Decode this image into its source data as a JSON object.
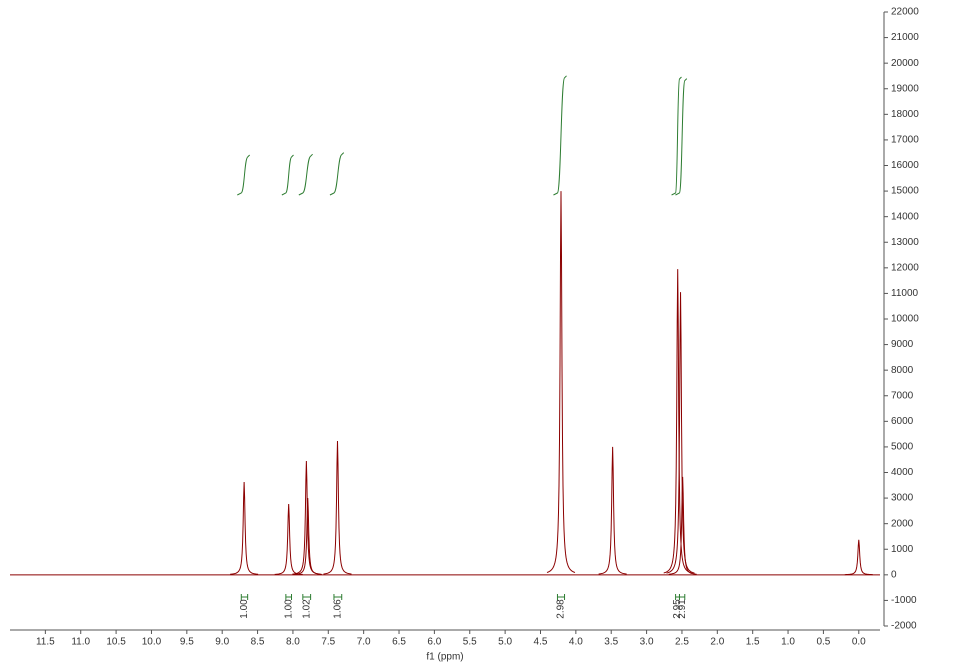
{
  "chart_data": {
    "type": "nmr",
    "x_label": "f1 (ppm)",
    "color": "#8b0000",
    "integral_color": "#2e7d32",
    "label_color": "#1a237e",
    "xlim": [
      12.0,
      -0.3
    ],
    "xticks": [
      11.5,
      {
        "value": 11,
        "label": "11.0"
      },
      10.5,
      {
        "value": 10,
        "label": "10.0"
      },
      9.5,
      {
        "value": 9,
        "label": "9.0"
      },
      8.5,
      {
        "value": 8,
        "label": "8.0"
      },
      7.5,
      {
        "value": 7,
        "label": "7.0"
      },
      6.5,
      {
        "value": 6,
        "label": "6.0"
      },
      5.5,
      {
        "value": 5,
        "label": "5.0"
      },
      4.5,
      {
        "value": 4,
        "label": "4.0"
      },
      3.5,
      {
        "value": 3,
        "label": "3.0"
      },
      2.5,
      {
        "value": 2,
        "label": "2.0"
      },
      1.5,
      {
        "value": 1,
        "label": "1.0"
      },
      0.5,
      {
        "value": 0,
        "label": "0.0"
      }
    ],
    "ylim": [
      -2000,
      22000
    ],
    "yticks": [
      -2000,
      -1000,
      0,
      1000,
      2000,
      3000,
      4000,
      5000,
      6000,
      7000,
      8000,
      9000,
      10000,
      11000,
      12000,
      13000,
      14000,
      15000,
      16000,
      17000,
      18000,
      19000,
      20000,
      21000,
      22000
    ],
    "x": [
      8.69,
      8.06,
      7.81,
      7.79,
      7.37,
      4.21,
      3.48,
      2.56,
      2.52,
      2.49,
      0.0
    ],
    "values": [
      3630,
      2770,
      4450,
      3000,
      5230,
      15000,
      5000,
      11950,
      11050,
      3830,
      1370
    ],
    "integrals": {
      "from": [
        8.73,
        8.1,
        7.86,
        7.42,
        4.26,
        2.59,
        2.535
      ],
      "to": [
        8.64,
        8.02,
        7.75,
        7.31,
        4.16,
        2.535,
        2.46
      ],
      "values": [
        1,
        1,
        1.02,
        1.06,
        2.98,
        2.95,
        2.91
      ],
      "value_labels": [
        "1.00",
        "1.00",
        "1.02",
        "1.06",
        "2.98",
        "2.95",
        "2.91"
      ]
    }
  }
}
